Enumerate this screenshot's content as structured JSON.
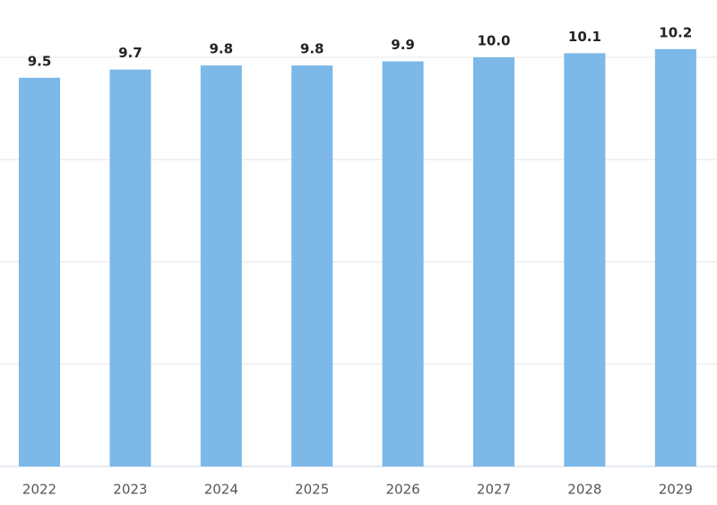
{
  "chart_data": {
    "type": "bar",
    "categories": [
      "2022",
      "2023",
      "2024",
      "2025",
      "2026",
      "2027",
      "2028",
      "2029"
    ],
    "values": [
      9.5,
      9.7,
      9.8,
      9.8,
      9.9,
      10,
      10.1,
      10.2
    ],
    "value_labels": [
      "9.5",
      "9.7",
      "9.8",
      "9.8",
      "9.9",
      "10.0",
      "10.1",
      "10.2"
    ],
    "color": "#7cb8e8",
    "ylim": [
      0,
      11.4
    ],
    "yticks": [
      0,
      2.5,
      5,
      7.5,
      10
    ],
    "grid": true
  }
}
